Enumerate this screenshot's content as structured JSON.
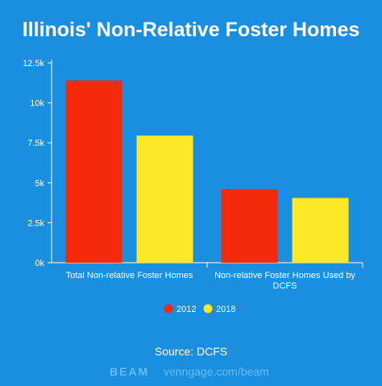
{
  "chart_data": {
    "type": "bar",
    "title": "Illinois' Non-Relative Foster Homes",
    "categories": [
      "Total Non-relative Foster Homes",
      "Non-relative Foster Homes Used by DCFS"
    ],
    "category_lines": [
      [
        "Total Non-relative Foster Homes"
      ],
      [
        "Non-relative Foster Homes Used by",
        "DCFS"
      ]
    ],
    "series": [
      {
        "name": "2012",
        "color": "#f52a0c",
        "values": [
          11400,
          4600
        ]
      },
      {
        "name": "2018",
        "color": "#fde827",
        "values": [
          7950,
          4050
        ]
      }
    ],
    "ylim": [
      0,
      12500
    ],
    "yticks": [
      0,
      2500,
      5000,
      7500,
      10000,
      12500
    ],
    "ytick_labels": [
      "0k",
      "2.5k",
      "5k",
      "7.5k",
      "10k",
      "12.5k"
    ],
    "xlabel": "",
    "ylabel": "",
    "grid": false,
    "legend_position": "bottom"
  },
  "footer": {
    "source": "Source: DCFS",
    "brand": "BEAM",
    "site": "venngage.com/beam"
  },
  "colors": {
    "background": "#1a8fe0",
    "axis": "#ffffff"
  }
}
